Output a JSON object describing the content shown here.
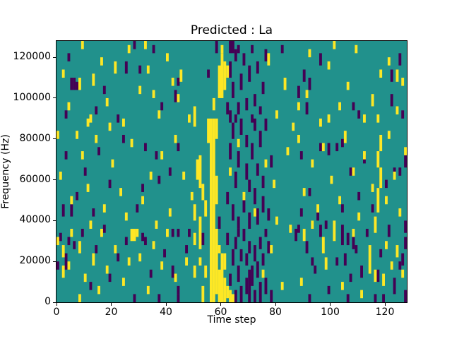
{
  "figure": {
    "title": "Predicted : La",
    "xlabel": "Time step",
    "ylabel": "Frequency (Hz)",
    "background": "#ffffff"
  },
  "chart_data": {
    "type": "heatmap",
    "title": "Predicted : La",
    "xlabel": "Time step",
    "ylabel": "Frequency (Hz)",
    "xlim": [
      0,
      128
    ],
    "ylim": [
      0,
      128000
    ],
    "n_cols": 128,
    "n_rows": 64,
    "cell_hz": 2000,
    "grid": false,
    "legend": "none",
    "x_tick_values": [
      0,
      20,
      40,
      60,
      80,
      100,
      120
    ],
    "x_tick_labels": [
      "0",
      "20",
      "40",
      "60",
      "80",
      "100",
      "120"
    ],
    "y_tick_values": [
      0,
      20000,
      40000,
      60000,
      80000,
      100000,
      120000
    ],
    "y_tick_labels": [
      "0",
      "20000",
      "40000",
      "60000",
      "80000",
      "100000",
      "120000"
    ],
    "palette": {
      "background": "#21918c",
      "yellow": "#fde725",
      "purple": "#440154"
    },
    "run_format": "[column, row_start, row_end] inclusive; row 0 = bottom (0 Hz), 2000 Hz per row",
    "yellow_runs": [
      [
        0,
        14,
        15
      ],
      [
        2,
        6,
        8
      ],
      [
        2,
        11,
        13
      ],
      [
        4,
        8,
        9
      ],
      [
        5,
        16,
        17
      ],
      [
        8,
        0,
        1
      ],
      [
        8,
        12,
        14
      ],
      [
        10,
        5,
        6
      ],
      [
        12,
        18,
        19
      ],
      [
        13,
        9,
        11
      ],
      [
        15,
        2,
        3
      ],
      [
        16,
        16,
        17
      ],
      [
        18,
        7,
        8
      ],
      [
        21,
        12,
        13
      ],
      [
        24,
        4,
        5
      ],
      [
        26,
        9,
        10
      ],
      [
        27,
        15,
        17
      ],
      [
        28,
        15,
        17
      ],
      [
        29,
        16,
        17
      ],
      [
        30,
        10,
        11
      ],
      [
        33,
        2,
        3
      ],
      [
        35,
        13,
        14
      ],
      [
        36,
        18,
        19
      ],
      [
        38,
        8,
        9
      ],
      [
        40,
        16,
        17
      ],
      [
        43,
        5,
        6
      ],
      [
        0,
        40,
        41
      ],
      [
        1,
        30,
        31
      ],
      [
        5,
        24,
        25
      ],
      [
        7,
        40,
        41
      ],
      [
        9,
        35,
        36
      ],
      [
        11,
        27,
        28
      ],
      [
        14,
        39,
        40
      ],
      [
        17,
        22,
        23
      ],
      [
        20,
        33,
        34
      ],
      [
        23,
        26,
        27
      ],
      [
        25,
        20,
        21
      ],
      [
        27,
        38,
        39
      ],
      [
        31,
        24,
        25
      ],
      [
        34,
        30,
        31
      ],
      [
        38,
        35,
        36
      ],
      [
        41,
        21,
        22
      ],
      [
        43,
        39,
        40
      ],
      [
        2,
        55,
        56
      ],
      [
        4,
        47,
        48
      ],
      [
        8,
        52,
        54
      ],
      [
        9,
        62,
        63
      ],
      [
        11,
        43,
        44
      ],
      [
        12,
        44,
        45
      ],
      [
        13,
        53,
        55
      ],
      [
        16,
        58,
        59
      ],
      [
        18,
        48,
        49
      ],
      [
        19,
        42,
        43
      ],
      [
        21,
        56,
        58
      ],
      [
        24,
        43,
        44
      ],
      [
        26,
        61,
        62
      ],
      [
        30,
        51,
        52
      ],
      [
        32,
        62,
        63
      ],
      [
        33,
        56,
        57
      ],
      [
        35,
        50,
        51
      ],
      [
        37,
        45,
        46
      ],
      [
        40,
        59,
        60
      ],
      [
        42,
        53,
        54
      ],
      [
        44,
        49,
        50
      ],
      [
        45,
        54,
        56
      ],
      [
        46,
        30,
        31
      ],
      [
        47,
        9,
        10
      ],
      [
        48,
        44,
        45
      ],
      [
        49,
        25,
        26
      ],
      [
        50,
        6,
        8
      ],
      [
        50,
        14,
        16
      ],
      [
        50,
        20,
        23
      ],
      [
        50,
        43,
        47
      ],
      [
        51,
        30,
        34
      ],
      [
        52,
        9,
        10
      ],
      [
        52,
        13,
        15
      ],
      [
        52,
        16,
        20
      ],
      [
        52,
        28,
        35
      ],
      [
        53,
        0,
        3
      ],
      [
        53,
        25,
        28
      ],
      [
        54,
        6,
        8
      ],
      [
        54,
        21,
        24
      ],
      [
        55,
        39,
        44
      ],
      [
        56,
        0,
        44
      ],
      [
        57,
        0,
        44
      ],
      [
        57,
        47,
        49
      ],
      [
        58,
        2,
        17
      ],
      [
        58,
        24,
        30
      ],
      [
        58,
        40,
        44
      ],
      [
        59,
        0,
        7
      ],
      [
        59,
        12,
        13
      ],
      [
        60,
        0,
        11
      ],
      [
        61,
        0,
        5
      ],
      [
        61,
        8,
        11
      ],
      [
        59,
        50,
        57
      ],
      [
        60,
        50,
        60
      ],
      [
        60,
        61,
        62
      ],
      [
        61,
        52,
        58
      ],
      [
        62,
        55,
        57
      ],
      [
        62,
        1,
        3
      ],
      [
        63,
        0,
        2
      ],
      [
        64,
        0,
        1
      ],
      [
        75,
        6,
        7
      ],
      [
        78,
        12,
        13
      ],
      [
        82,
        3,
        4
      ],
      [
        85,
        17,
        18
      ],
      [
        80,
        19,
        20
      ],
      [
        63,
        31,
        32
      ],
      [
        66,
        38,
        39
      ],
      [
        68,
        25,
        26
      ],
      [
        72,
        21,
        22
      ],
      [
        76,
        33,
        34
      ],
      [
        79,
        28,
        29
      ],
      [
        84,
        36,
        37
      ],
      [
        77,
        58,
        60
      ],
      [
        80,
        45,
        46
      ],
      [
        83,
        52,
        54
      ],
      [
        86,
        42,
        43
      ],
      [
        88,
        47,
        48
      ],
      [
        91,
        50,
        51
      ],
      [
        92,
        60,
        61
      ],
      [
        88,
        39,
        40
      ],
      [
        90,
        26,
        27
      ],
      [
        93,
        33,
        34
      ],
      [
        95,
        22,
        23
      ],
      [
        97,
        37,
        38
      ],
      [
        100,
        29,
        30
      ],
      [
        103,
        24,
        25
      ],
      [
        105,
        39,
        41
      ],
      [
        108,
        31,
        32
      ],
      [
        110,
        20,
        21
      ],
      [
        112,
        35,
        36
      ],
      [
        115,
        27,
        28
      ],
      [
        117,
        22,
        27
      ],
      [
        117,
        33,
        36
      ],
      [
        118,
        28,
        32
      ],
      [
        118,
        37,
        40
      ],
      [
        120,
        24,
        25
      ],
      [
        121,
        40,
        41
      ],
      [
        123,
        30,
        31
      ],
      [
        125,
        21,
        22
      ],
      [
        127,
        36,
        37
      ],
      [
        96,
        43,
        44
      ],
      [
        99,
        44,
        45
      ],
      [
        99,
        57,
        58
      ],
      [
        101,
        62,
        63
      ],
      [
        103,
        47,
        48
      ],
      [
        106,
        52,
        53
      ],
      [
        109,
        61,
        62
      ],
      [
        112,
        44,
        45
      ],
      [
        115,
        48,
        50
      ],
      [
        117,
        44,
        45
      ],
      [
        118,
        55,
        56
      ],
      [
        121,
        58,
        59
      ],
      [
        124,
        46,
        47
      ],
      [
        124,
        54,
        56
      ],
      [
        126,
        53,
        54
      ],
      [
        89,
        4,
        5
      ],
      [
        90,
        15,
        17
      ],
      [
        93,
        18,
        19
      ],
      [
        97,
        12,
        15
      ],
      [
        98,
        8,
        10
      ],
      [
        101,
        15,
        19
      ],
      [
        104,
        3,
        4
      ],
      [
        108,
        16,
        17
      ],
      [
        111,
        1,
        2
      ],
      [
        114,
        7,
        13
      ],
      [
        116,
        5,
        7
      ],
      [
        116,
        17,
        20
      ],
      [
        119,
        4,
        6
      ],
      [
        120,
        13,
        14
      ],
      [
        122,
        8,
        9
      ],
      [
        124,
        11,
        13
      ],
      [
        126,
        6,
        7
      ]
    ],
    "purple_runs": [
      [
        0,
        8,
        9
      ],
      [
        1,
        15,
        16
      ],
      [
        3,
        8,
        11
      ],
      [
        4,
        14,
        15
      ],
      [
        6,
        13,
        14
      ],
      [
        9,
        16,
        17
      ],
      [
        12,
        3,
        4
      ],
      [
        14,
        12,
        13
      ],
      [
        17,
        17,
        18
      ],
      [
        19,
        5,
        6
      ],
      [
        22,
        10,
        11
      ],
      [
        25,
        14,
        15
      ],
      [
        28,
        0,
        1
      ],
      [
        31,
        15,
        16
      ],
      [
        32,
        14,
        15
      ],
      [
        34,
        6,
        7
      ],
      [
        37,
        0,
        1
      ],
      [
        39,
        11,
        12
      ],
      [
        42,
        16,
        17
      ],
      [
        44,
        0,
        1
      ],
      [
        44,
        2,
        3
      ],
      [
        42,
        6,
        8
      ],
      [
        44,
        16,
        17
      ],
      [
        47,
        12,
        13
      ],
      [
        48,
        16,
        17
      ],
      [
        53,
        14,
        16
      ],
      [
        2,
        21,
        23
      ],
      [
        5,
        21,
        23
      ],
      [
        3,
        35,
        36
      ],
      [
        7,
        25,
        26
      ],
      [
        10,
        31,
        32
      ],
      [
        13,
        21,
        22
      ],
      [
        15,
        36,
        37
      ],
      [
        19,
        28,
        29
      ],
      [
        24,
        39,
        40
      ],
      [
        29,
        22,
        23
      ],
      [
        31,
        27,
        28
      ],
      [
        32,
        37,
        38
      ],
      [
        36,
        35,
        36
      ],
      [
        37,
        29,
        30
      ],
      [
        41,
        31,
        32
      ],
      [
        44,
        37,
        38
      ],
      [
        3,
        45,
        46
      ],
      [
        4,
        59,
        60
      ],
      [
        5,
        52,
        54
      ],
      [
        6,
        52,
        54
      ],
      [
        7,
        52,
        53
      ],
      [
        14,
        46,
        47
      ],
      [
        17,
        51,
        52
      ],
      [
        22,
        44,
        45
      ],
      [
        25,
        56,
        58
      ],
      [
        28,
        62,
        63
      ],
      [
        30,
        56,
        57
      ],
      [
        35,
        61,
        62
      ],
      [
        38,
        47,
        48
      ],
      [
        43,
        49,
        51
      ],
      [
        44,
        53,
        54
      ],
      [
        55,
        55,
        56
      ],
      [
        58,
        61,
        63
      ],
      [
        59,
        18,
        20
      ],
      [
        63,
        44,
        46
      ],
      [
        62,
        14,
        16
      ],
      [
        63,
        4,
        6
      ],
      [
        64,
        9,
        12
      ],
      [
        65,
        0,
        2
      ],
      [
        65,
        13,
        15
      ],
      [
        66,
        5,
        8
      ],
      [
        66,
        16,
        17
      ],
      [
        67,
        0,
        3
      ],
      [
        67,
        10,
        12
      ],
      [
        68,
        15,
        17
      ],
      [
        69,
        2,
        5
      ],
      [
        69,
        9,
        11
      ],
      [
        70,
        0,
        7
      ],
      [
        70,
        12,
        14
      ],
      [
        71,
        4,
        8
      ],
      [
        72,
        0,
        2
      ],
      [
        72,
        10,
        13
      ],
      [
        73,
        6,
        9
      ],
      [
        74,
        0,
        4
      ],
      [
        74,
        13,
        15
      ],
      [
        75,
        9,
        11
      ],
      [
        76,
        2,
        5
      ],
      [
        76,
        16,
        17
      ],
      [
        77,
        12,
        14
      ],
      [
        78,
        0,
        2
      ],
      [
        62,
        24,
        26
      ],
      [
        63,
        35,
        38
      ],
      [
        64,
        20,
        23
      ],
      [
        64,
        40,
        43
      ],
      [
        65,
        28,
        31
      ],
      [
        65,
        44,
        45
      ],
      [
        66,
        18,
        20
      ],
      [
        66,
        33,
        36
      ],
      [
        67,
        41,
        44
      ],
      [
        68,
        22,
        25
      ],
      [
        69,
        30,
        33
      ],
      [
        69,
        38,
        40
      ],
      [
        70,
        18,
        21
      ],
      [
        70,
        27,
        29
      ],
      [
        71,
        35,
        38
      ],
      [
        71,
        44,
        45
      ],
      [
        72,
        24,
        27
      ],
      [
        72,
        42,
        44
      ],
      [
        73,
        19,
        22
      ],
      [
        73,
        31,
        33
      ],
      [
        74,
        38,
        41
      ],
      [
        75,
        22,
        25
      ],
      [
        75,
        28,
        30
      ],
      [
        76,
        42,
        44
      ],
      [
        77,
        20,
        22
      ],
      [
        78,
        33,
        35
      ],
      [
        62,
        46,
        48
      ],
      [
        63,
        55,
        58
      ],
      [
        63,
        61,
        63
      ],
      [
        64,
        50,
        53
      ],
      [
        64,
        61,
        63
      ],
      [
        65,
        59,
        61
      ],
      [
        66,
        46,
        48
      ],
      [
        66,
        61,
        62
      ],
      [
        67,
        52,
        55
      ],
      [
        68,
        58,
        60
      ],
      [
        69,
        47,
        49
      ],
      [
        70,
        54,
        57
      ],
      [
        71,
        61,
        62
      ],
      [
        72,
        48,
        50
      ],
      [
        73,
        56,
        58
      ],
      [
        74,
        46,
        47
      ],
      [
        75,
        51,
        53
      ],
      [
        76,
        59,
        61
      ],
      [
        82,
        61,
        62
      ],
      [
        87,
        15,
        17
      ],
      [
        88,
        17,
        18
      ],
      [
        91,
        12,
        14
      ],
      [
        92,
        0,
        1
      ],
      [
        93,
        9,
        10
      ],
      [
        94,
        7,
        8
      ],
      [
        96,
        16,
        18
      ],
      [
        98,
        18,
        19
      ],
      [
        99,
        2,
        3
      ],
      [
        102,
        9,
        10
      ],
      [
        104,
        14,
        18
      ],
      [
        105,
        9,
        11
      ],
      [
        106,
        0,
        1
      ],
      [
        106,
        14,
        16
      ],
      [
        107,
        5,
        6
      ],
      [
        108,
        13,
        15
      ],
      [
        109,
        12,
        13
      ],
      [
        111,
        6,
        8
      ],
      [
        113,
        16,
        17
      ],
      [
        116,
        0,
        1
      ],
      [
        117,
        5,
        7
      ],
      [
        118,
        11,
        12
      ],
      [
        119,
        0,
        1
      ],
      [
        121,
        16,
        18
      ],
      [
        123,
        2,
        5
      ],
      [
        125,
        8,
        9
      ],
      [
        126,
        9,
        11
      ],
      [
        127,
        0,
        2
      ],
      [
        127,
        13,
        15
      ],
      [
        127,
        17,
        19
      ],
      [
        89,
        21,
        22
      ],
      [
        89,
        35,
        36
      ],
      [
        92,
        26,
        27
      ],
      [
        95,
        20,
        21
      ],
      [
        96,
        37,
        38
      ],
      [
        99,
        36,
        38
      ],
      [
        102,
        37,
        38
      ],
      [
        104,
        22,
        23
      ],
      [
        104,
        38,
        39
      ],
      [
        107,
        31,
        32
      ],
      [
        110,
        25,
        26
      ],
      [
        112,
        34,
        35
      ],
      [
        115,
        22,
        23
      ],
      [
        120,
        28,
        29
      ],
      [
        123,
        31,
        32
      ],
      [
        125,
        31,
        32
      ],
      [
        127,
        33,
        35
      ],
      [
        88,
        50,
        52
      ],
      [
        90,
        54,
        56
      ],
      [
        91,
        46,
        48
      ],
      [
        92,
        52,
        54
      ],
      [
        96,
        58,
        60
      ],
      [
        108,
        47,
        48
      ],
      [
        110,
        45,
        46
      ],
      [
        122,
        48,
        50
      ],
      [
        122,
        54,
        56
      ],
      [
        125,
        58,
        60
      ],
      [
        126,
        45,
        46
      ]
    ]
  }
}
